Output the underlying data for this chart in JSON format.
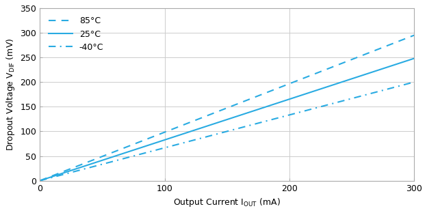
{
  "xlim": [
    0,
    300
  ],
  "ylim": [
    0,
    350
  ],
  "xticks": [
    0,
    100,
    200,
    300
  ],
  "yticks": [
    0,
    50,
    100,
    150,
    200,
    250,
    300,
    350
  ],
  "line_color": "#29abe2",
  "series": [
    {
      "label": "85°C",
      "linestyle": "dashed",
      "slope": 0.9833,
      "intercept": 0,
      "dash_pattern": [
        5,
        4
      ]
    },
    {
      "label": "25°C",
      "linestyle": "solid",
      "slope": 0.8267,
      "intercept": 0,
      "dash_pattern": null
    },
    {
      "label": "-40°C",
      "linestyle": "dashdot",
      "slope": 0.6667,
      "intercept": 0,
      "dash_pattern": [
        5,
        3,
        1,
        3
      ]
    }
  ],
  "legend_loc": "upper left",
  "background_color": "#ffffff",
  "grid_color": "#cccccc",
  "font_size": 9,
  "label_font_size": 9,
  "legend_font_size": 9
}
